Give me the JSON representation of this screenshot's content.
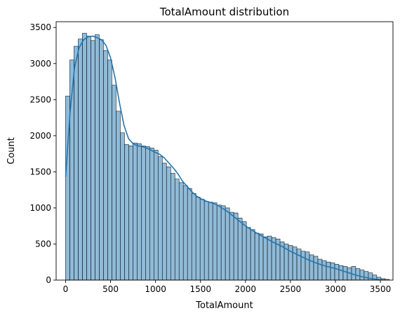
{
  "chart_data": {
    "type": "bar",
    "title": "TotalAmount distribution",
    "xlabel": "TotalAmount",
    "ylabel": "Count",
    "xlim": [
      -105,
      3640
    ],
    "ylim": [
      0,
      3580
    ],
    "x_ticks": [
      0,
      500,
      1000,
      1500,
      2000,
      2500,
      3000,
      3500
    ],
    "y_ticks": [
      0,
      500,
      1000,
      1500,
      2000,
      2500,
      3000,
      3500
    ],
    "grid": false,
    "bin_start": 0,
    "bin_width": 46.75,
    "values": [
      2550,
      3050,
      3240,
      3340,
      3420,
      3380,
      3320,
      3400,
      3330,
      3180,
      3050,
      2700,
      2340,
      2040,
      1880,
      1860,
      1900,
      1890,
      1860,
      1850,
      1830,
      1800,
      1710,
      1620,
      1570,
      1480,
      1400,
      1350,
      1310,
      1270,
      1200,
      1150,
      1120,
      1090,
      1080,
      1070,
      1040,
      1030,
      1000,
      940,
      930,
      860,
      810,
      730,
      700,
      650,
      640,
      600,
      610,
      590,
      570,
      530,
      500,
      480,
      460,
      430,
      400,
      390,
      350,
      330,
      290,
      270,
      250,
      240,
      220,
      200,
      190,
      170,
      190,
      160,
      140,
      120,
      100,
      70,
      40,
      20,
      10
    ],
    "kde": {
      "x": [
        0,
        50,
        100,
        150,
        200,
        250,
        300,
        350,
        400,
        450,
        500,
        550,
        600,
        650,
        700,
        750,
        800,
        850,
        900,
        950,
        1000,
        1050,
        1100,
        1150,
        1200,
        1250,
        1300,
        1350,
        1400,
        1450,
        1500,
        1550,
        1600,
        1650,
        1700,
        1750,
        1800,
        1850,
        1900,
        1950,
        2000,
        2100,
        2200,
        2300,
        2400,
        2500,
        2600,
        2700,
        2800,
        2900,
        3000,
        3100,
        3200,
        3300,
        3400,
        3500,
        3550
      ],
      "y": [
        1430,
        2330,
        2950,
        3220,
        3330,
        3370,
        3380,
        3360,
        3330,
        3250,
        3080,
        2800,
        2450,
        2140,
        1960,
        1890,
        1860,
        1850,
        1830,
        1800,
        1770,
        1740,
        1690,
        1620,
        1550,
        1470,
        1370,
        1300,
        1230,
        1170,
        1130,
        1100,
        1080,
        1060,
        1030,
        990,
        950,
        900,
        850,
        800,
        750,
        670,
        600,
        530,
        470,
        400,
        340,
        280,
        230,
        190,
        160,
        120,
        80,
        45,
        20,
        5,
        2
      ]
    },
    "bar_color": "#1f77b4",
    "bar_fill_opacity": 0.5,
    "kde_color": "#1f77b4"
  }
}
